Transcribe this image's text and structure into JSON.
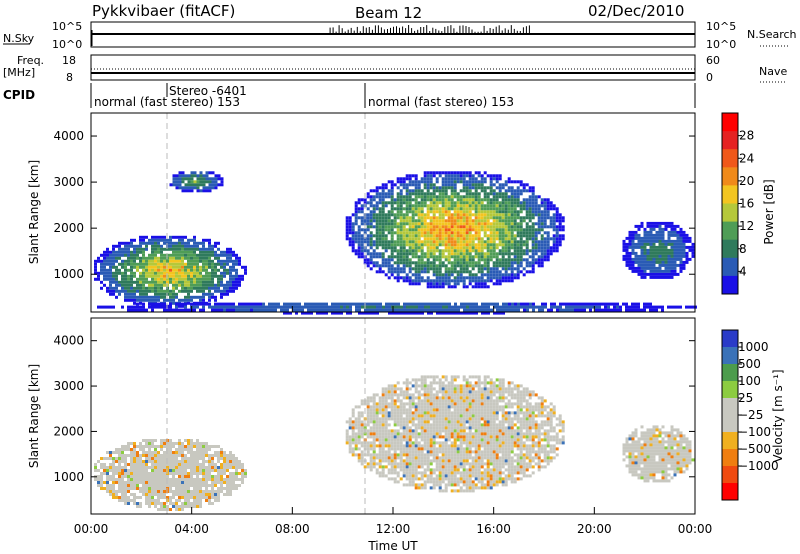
{
  "header": {
    "station": "Pykkvibaer (fitACF)",
    "beam": "Beam 12",
    "date": "02/Dec/2010"
  },
  "panels": {
    "nsky_label": "N.Sky",
    "nsky_ticks": [
      "10^5",
      "10^0"
    ],
    "nsearch_label": "N.Search",
    "freq_label_top": "Freq.",
    "freq_label_bottom": "[MHz]",
    "freq_ticks": [
      "18",
      "8"
    ],
    "nave_label": "Nave",
    "nave_ticks": [
      "60",
      "0"
    ],
    "cpid_label": "CPID",
    "cpid_segments": [
      {
        "start_hour": 0.0,
        "label": "normal (fast stereo) 153"
      },
      {
        "start_hour": 3.0,
        "label": "Stereo -6401"
      },
      {
        "start_hour": 10.8,
        "label": "normal (fast stereo) 153"
      }
    ]
  },
  "colors": {
    "power_scale": [
      "#1a10e6",
      "#2a5bb5",
      "#2f7a5c",
      "#4f9d56",
      "#b5c83a",
      "#f3c520",
      "#f08a1a",
      "#f0581a",
      "#e52222",
      "#ff0000"
    ],
    "velocity_scale": [
      "#ff0000",
      "#f04a10",
      "#f07e10",
      "#f0b020",
      "#c8c8c0",
      "#c8c8c0",
      "#8ccc40",
      "#4c9c4c",
      "#3a72b8",
      "#2a3bc8"
    ]
  },
  "chart_data": [
    {
      "type": "heatmap",
      "name": "power",
      "ylabel": "Slant Range [km]",
      "ylim": [
        180,
        4500
      ],
      "xlim": [
        0,
        24
      ],
      "yticks": [
        1000,
        2000,
        3000,
        4000
      ],
      "colorbar": {
        "label": "Power [dB]",
        "ticks": [
          4,
          8,
          12,
          16,
          20,
          24,
          28
        ],
        "range": [
          0,
          32
        ]
      },
      "echo_regions": [
        {
          "x": [
            0.0,
            6.1
          ],
          "y": [
            300,
            1900
          ],
          "peak_db": 26
        },
        {
          "x": [
            3.0,
            5.2
          ],
          "y": [
            2800,
            3300
          ],
          "peak_db": 14
        },
        {
          "x": [
            10.0,
            18.8
          ],
          "y": [
            700,
            3300
          ],
          "peak_db": 30
        },
        {
          "x": [
            21.0,
            23.9
          ],
          "y": [
            900,
            2200
          ],
          "peak_db": 10
        },
        {
          "x": [
            0.0,
            24.0
          ],
          "y": [
            180,
            450
          ],
          "peak_db": 8
        }
      ]
    },
    {
      "type": "heatmap",
      "name": "velocity",
      "ylabel": "Slant Range [km]",
      "xlabel": "Time UT",
      "ylim": [
        180,
        4500
      ],
      "xlim": [
        0,
        24
      ],
      "yticks": [
        1000,
        2000,
        3000,
        4000
      ],
      "xticks": [
        "00:00",
        "04:00",
        "08:00",
        "12:00",
        "16:00",
        "20:00",
        "00:00"
      ],
      "xtick_hours": [
        0,
        4,
        8,
        12,
        16,
        20,
        24
      ],
      "colorbar": {
        "label": "Velocity [m s⁻¹]",
        "ticks": [
          "1000",
          "500",
          "100",
          "25",
          "−25",
          "−100",
          "−500",
          "−1000"
        ]
      },
      "echo_regions": [
        {
          "x": [
            0.0,
            6.1
          ],
          "y": [
            300,
            1900
          ],
          "typical_velocity": "-100 to 25"
        },
        {
          "x": [
            10.0,
            18.8
          ],
          "y": [
            700,
            3300
          ],
          "typical_velocity": "-25 to 25"
        },
        {
          "x": [
            21.0,
            23.9
          ],
          "y": [
            900,
            2200
          ],
          "typical_velocity": "-25 to 100"
        }
      ]
    }
  ]
}
